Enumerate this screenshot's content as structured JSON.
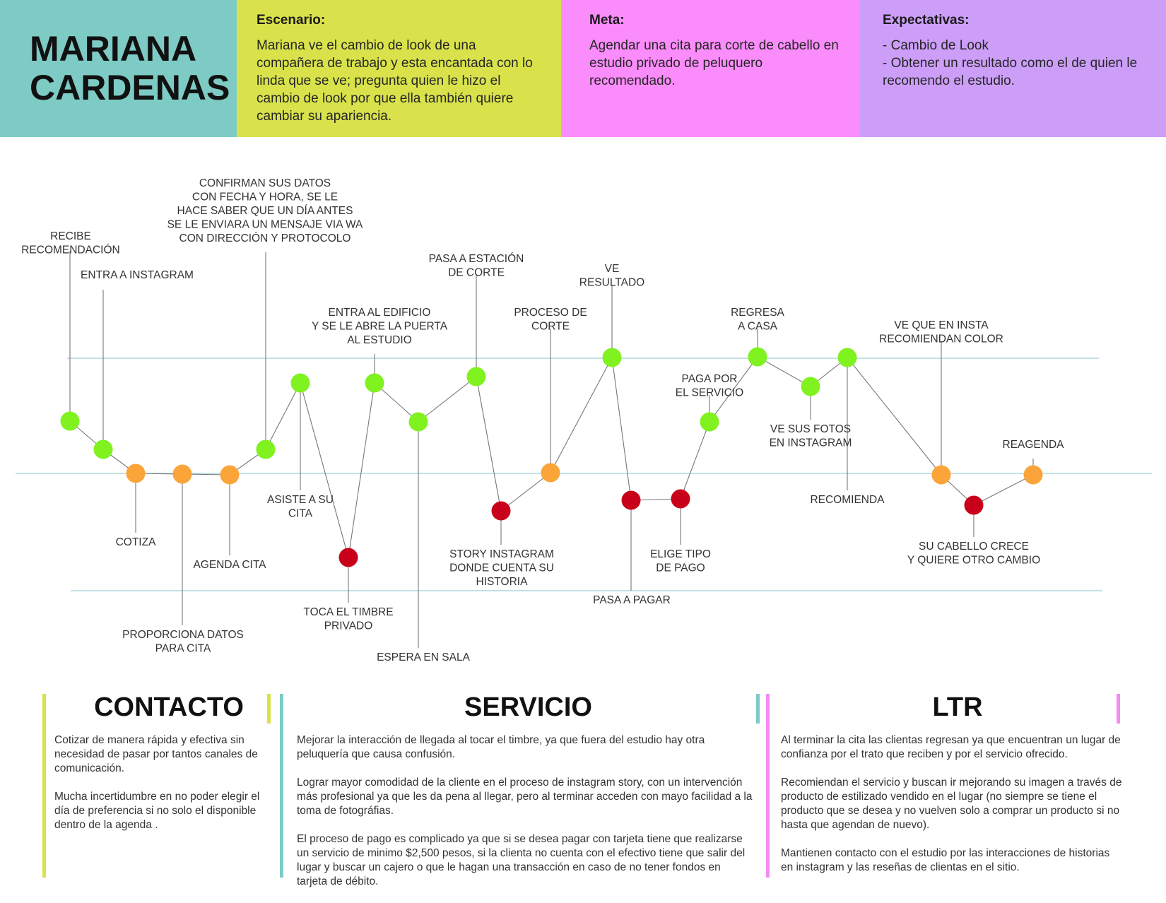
{
  "persona": {
    "name_line1": "MARIANA",
    "name_line2": "CARDENAS"
  },
  "header": {
    "scenario": {
      "title": "Escenario:",
      "text": "Mariana ve el cambio de look de una compañera de trabajo y esta encantada con lo linda que se ve; pregunta quien le hizo el cambio de look por que ella también quiere cambiar su apariencia."
    },
    "goal": {
      "title": "Meta:",
      "text": "Agendar una cita para corte de cabello en estudio privado de peluquero recomendado."
    },
    "expectations": {
      "title": "Expectativas:",
      "items": [
        "- Cambio de Look",
        "- Obtener un resultado como el de quien le recomendo el estudio."
      ]
    }
  },
  "colors": {
    "name_bg": "#7ecbc5",
    "scenario_bg": "#d9e24a",
    "goal_bg": "#fb8cfb",
    "expectations_bg": "#cc9ef8",
    "positive": "#7ff21f",
    "neutral": "#fba43a",
    "negative": "#c8001a",
    "guide_line": "#9fcfd8",
    "connector": "#777777",
    "contacto_bar": "#d9e24a",
    "servicio_bar": "#7ecbc5",
    "ltr_bar": "#f38cf3"
  },
  "journey": {
    "steps": [
      {
        "label": [
          "RECIBE",
          "RECOMENDACIÓN"
        ],
        "mood": "positive"
      },
      {
        "label": [
          "ENTRA A INSTAGRAM"
        ],
        "mood": "positive"
      },
      {
        "label": [
          "COTIZA"
        ],
        "mood": "neutral"
      },
      {
        "label": [
          "PROPORCIONA DATOS",
          "PARA CITA"
        ],
        "mood": "neutral"
      },
      {
        "label": [
          "AGENDA CITA"
        ],
        "mood": "neutral"
      },
      {
        "label": [
          "CONFIRMAN SUS DATOS",
          "CON FECHA Y HORA, SE LE",
          "HACE SABER QUE UN DÍA ANTES",
          "SE LE ENVIARA UN MENSAJE VIA WA",
          "CON DIRECCIÓN Y PROTOCOLO"
        ],
        "mood": "positive"
      },
      {
        "label": [
          "ASISTE A SU",
          "CITA"
        ],
        "mood": "positive"
      },
      {
        "label": [
          "TOCA EL TIMBRE",
          "PRIVADO"
        ],
        "mood": "negative"
      },
      {
        "label": [
          "ENTRA AL EDIFICIO",
          "Y SE LE ABRE LA PUERTA",
          "AL ESTUDIO"
        ],
        "mood": "positive"
      },
      {
        "label": [
          "ESPERA EN SALA"
        ],
        "mood": "positive"
      },
      {
        "label": [
          "PASA A ESTACIÓN",
          "DE CORTE"
        ],
        "mood": "positive"
      },
      {
        "label": [
          "STORY INSTAGRAM",
          "DONDE CUENTA SU",
          "HISTORIA"
        ],
        "mood": "negative"
      },
      {
        "label": [
          "PROCESO DE",
          "CORTE"
        ],
        "mood": "neutral"
      },
      {
        "label": [
          "VE",
          "RESULTADO"
        ],
        "mood": "positive"
      },
      {
        "label": [
          "PASA A PAGAR"
        ],
        "mood": "negative"
      },
      {
        "label": [
          "ELIGE TIPO",
          "DE PAGO"
        ],
        "mood": "negative"
      },
      {
        "label": [
          "PAGA POR",
          "EL SERVICIO"
        ],
        "mood": "positive"
      },
      {
        "label": [
          "REGRESA",
          "A CASA"
        ],
        "mood": "positive"
      },
      {
        "label": [
          "VE SUS FOTOS",
          "EN INSTAGRAM"
        ],
        "mood": "positive"
      },
      {
        "label": [
          "RECOMIENDA"
        ],
        "mood": "positive"
      },
      {
        "label": [
          "VE QUE EN INSTA",
          "RECOMIENDAN COLOR"
        ],
        "mood": "neutral"
      },
      {
        "label": [
          "SU CABELLO CRECE",
          "Y QUIERE OTRO CAMBIO"
        ],
        "mood": "negative"
      },
      {
        "label": [
          "REAGENDA"
        ],
        "mood": "neutral"
      }
    ]
  },
  "sections": {
    "contacto": {
      "title": "CONTACTO",
      "paragraphs": [
        "Cotizar de manera rápida y efectiva sin necesidad de pasar por tantos canales de comunicación.",
        "Mucha incertidumbre en no poder elegir el día de preferencia si no solo el disponible dentro de la agenda ."
      ]
    },
    "servicio": {
      "title": "SERVICIO",
      "paragraphs": [
        "Mejorar la interacción de llegada al tocar el timbre, ya que fuera del estudio hay otra peluquería que causa confusión.",
        "Lograr mayor comodidad de la cliente en el proceso de instagram story, con un intervención más profesional ya que les da pena al llegar, pero al terminar acceden con mayo facilidad a la toma de fotográfias.",
        "El proceso de pago es complicado ya que si se desea pagar con tarjeta tiene que realizarse un servicio de minimo $2,500 pesos, si la clienta no cuenta con el efectivo tiene que salir del lugar y buscar un cajero o que le hagan una transacción en caso de no tener fondos en tarjeta de débito."
      ]
    },
    "ltr": {
      "title": "LTR",
      "paragraphs": [
        "Al terminar la cita las clientas regresan ya que encuentran un lugar de confianza por el trato que reciben y por el servicio ofrecido.",
        "Recomiendan el servicio y buscan ir mejorando su imagen a través de producto de estilizado vendido en el lugar (no siempre se tiene el producto que se desea y no vuelven solo a comprar un producto si no hasta que agendan de nuevo).",
        "Mantienen contacto con el estudio por las interacciones de historias en instagram y las reseñas de clientas en el sitio."
      ]
    }
  }
}
